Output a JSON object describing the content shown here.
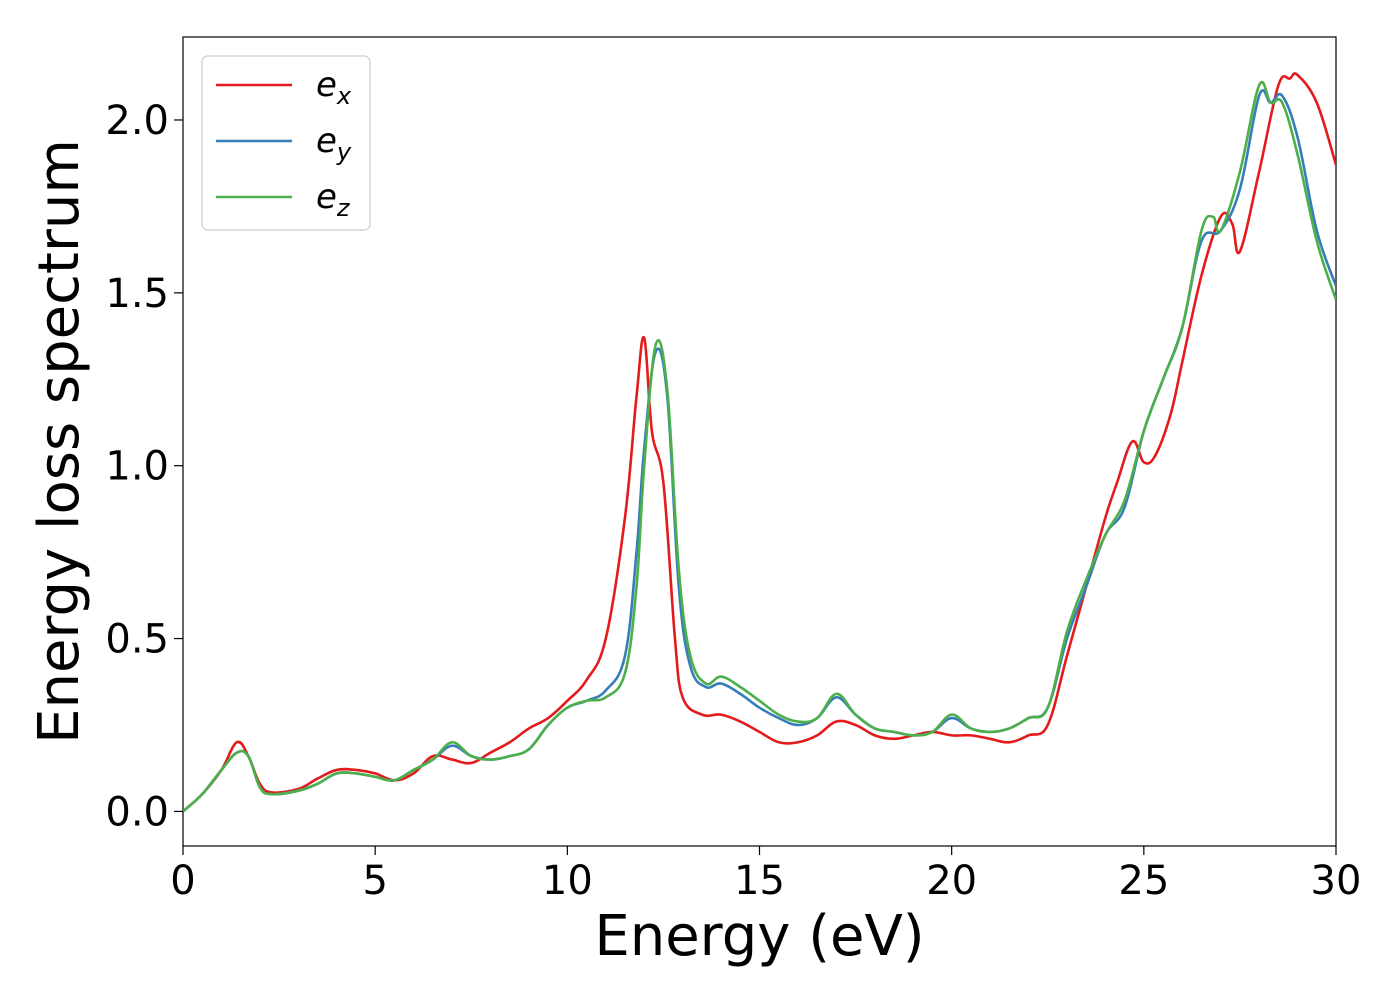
{
  "chart_data": {
    "type": "line",
    "title": "",
    "xlabel": "Energy (eV)",
    "ylabel": "Energy loss spectrum",
    "xlim": [
      0,
      30
    ],
    "ylim": [
      -0.1,
      2.24
    ],
    "xticks": [
      0,
      5,
      10,
      15,
      20,
      25,
      30
    ],
    "xtick_labels": [
      "0",
      "5",
      "10",
      "15",
      "20",
      "25",
      "30"
    ],
    "yticks": [
      0.0,
      0.5,
      1.0,
      1.5,
      2.0
    ],
    "ytick_labels": [
      "0.0",
      "0.5",
      "1.0",
      "1.5",
      "2.0"
    ],
    "grid": false,
    "legend_position": "top-left",
    "series": [
      {
        "name": "e",
        "subscript": "x",
        "color": "#e41a1c",
        "x": [
          0,
          0.5,
          1.0,
          1.4,
          1.7,
          2.0,
          2.3,
          3.0,
          3.5,
          4.0,
          4.5,
          5.0,
          5.5,
          6.0,
          6.5,
          7.0,
          7.5,
          8.0,
          8.5,
          9.0,
          9.5,
          10.0,
          10.5,
          11.0,
          11.5,
          11.8,
          12.0,
          12.2,
          12.5,
          12.8,
          13.0,
          13.5,
          14.0,
          14.5,
          15.0,
          15.5,
          16.0,
          16.5,
          17.0,
          17.5,
          18.0,
          18.5,
          19.0,
          19.5,
          20.0,
          20.5,
          21.0,
          21.5,
          22.0,
          22.5,
          23.0,
          23.5,
          24.0,
          24.3,
          24.7,
          25.0,
          25.3,
          25.7,
          26.0,
          26.5,
          27.0,
          27.3,
          27.5,
          28.0,
          28.5,
          28.8,
          29.0,
          29.5,
          30.0
        ],
        "y": [
          0.0,
          0.05,
          0.12,
          0.2,
          0.16,
          0.08,
          0.055,
          0.065,
          0.095,
          0.12,
          0.12,
          0.11,
          0.09,
          0.11,
          0.16,
          0.15,
          0.14,
          0.17,
          0.2,
          0.24,
          0.27,
          0.32,
          0.38,
          0.5,
          0.85,
          1.2,
          1.37,
          1.1,
          0.95,
          0.5,
          0.33,
          0.28,
          0.28,
          0.26,
          0.23,
          0.2,
          0.2,
          0.22,
          0.26,
          0.25,
          0.22,
          0.21,
          0.22,
          0.23,
          0.22,
          0.22,
          0.21,
          0.2,
          0.22,
          0.25,
          0.45,
          0.65,
          0.85,
          0.95,
          1.07,
          1.01,
          1.03,
          1.15,
          1.3,
          1.55,
          1.72,
          1.7,
          1.62,
          1.85,
          2.1,
          2.12,
          2.13,
          2.05,
          1.87
        ]
      },
      {
        "name": "e",
        "subscript": "y",
        "color": "#377eb8",
        "x": [
          0,
          0.5,
          1.0,
          1.4,
          1.7,
          2.0,
          2.3,
          3.0,
          3.5,
          4.0,
          4.5,
          5.0,
          5.5,
          6.0,
          6.5,
          7.0,
          7.5,
          8.0,
          8.5,
          9.0,
          9.5,
          10.0,
          10.5,
          11.0,
          11.5,
          11.8,
          12.0,
          12.3,
          12.6,
          12.9,
          13.2,
          13.6,
          14.0,
          14.5,
          15.0,
          15.5,
          16.0,
          16.5,
          17.0,
          17.5,
          18.0,
          18.5,
          19.0,
          19.5,
          20.0,
          20.5,
          21.0,
          21.5,
          22.0,
          22.5,
          23.0,
          23.5,
          24.0,
          24.5,
          25.0,
          25.5,
          26.0,
          26.5,
          27.0,
          27.5,
          28.0,
          28.3,
          28.6,
          29.0,
          29.5,
          30.0
        ],
        "y": [
          0.0,
          0.05,
          0.12,
          0.17,
          0.16,
          0.07,
          0.05,
          0.06,
          0.08,
          0.11,
          0.11,
          0.1,
          0.09,
          0.12,
          0.15,
          0.19,
          0.16,
          0.15,
          0.16,
          0.18,
          0.25,
          0.3,
          0.32,
          0.35,
          0.45,
          0.75,
          1.05,
          1.33,
          1.2,
          0.65,
          0.42,
          0.36,
          0.37,
          0.34,
          0.3,
          0.27,
          0.25,
          0.27,
          0.33,
          0.28,
          0.24,
          0.23,
          0.22,
          0.23,
          0.27,
          0.24,
          0.23,
          0.24,
          0.27,
          0.3,
          0.5,
          0.65,
          0.8,
          0.88,
          1.1,
          1.25,
          1.4,
          1.65,
          1.68,
          1.8,
          2.07,
          2.05,
          2.07,
          1.95,
          1.68,
          1.52
        ]
      },
      {
        "name": "e",
        "subscript": "z",
        "color": "#4daf4a",
        "x": [
          0,
          0.5,
          1.0,
          1.4,
          1.7,
          2.0,
          2.3,
          3.0,
          3.5,
          4.0,
          4.5,
          5.0,
          5.5,
          6.0,
          6.5,
          7.0,
          7.5,
          8.0,
          8.5,
          9.0,
          9.5,
          10.0,
          10.5,
          11.0,
          11.5,
          11.8,
          12.0,
          12.3,
          12.6,
          12.9,
          13.2,
          13.6,
          14.0,
          14.5,
          15.0,
          15.5,
          16.0,
          16.5,
          17.0,
          17.5,
          18.0,
          18.5,
          19.0,
          19.5,
          20.0,
          20.5,
          21.0,
          21.5,
          22.0,
          22.5,
          23.0,
          23.5,
          24.0,
          24.5,
          25.0,
          25.5,
          26.0,
          26.5,
          26.8,
          27.0,
          27.5,
          28.0,
          28.3,
          28.6,
          29.0,
          29.5,
          30.0
        ],
        "y": [
          0.0,
          0.05,
          0.12,
          0.17,
          0.16,
          0.07,
          0.05,
          0.06,
          0.08,
          0.11,
          0.11,
          0.1,
          0.09,
          0.12,
          0.15,
          0.2,
          0.16,
          0.15,
          0.16,
          0.18,
          0.25,
          0.3,
          0.32,
          0.33,
          0.4,
          0.65,
          1.0,
          1.35,
          1.22,
          0.7,
          0.45,
          0.37,
          0.39,
          0.36,
          0.32,
          0.28,
          0.26,
          0.27,
          0.34,
          0.28,
          0.24,
          0.23,
          0.22,
          0.23,
          0.28,
          0.24,
          0.23,
          0.24,
          0.27,
          0.3,
          0.52,
          0.67,
          0.8,
          0.9,
          1.1,
          1.25,
          1.4,
          1.68,
          1.72,
          1.68,
          1.85,
          2.1,
          2.05,
          2.05,
          1.9,
          1.65,
          1.48
        ]
      }
    ]
  }
}
